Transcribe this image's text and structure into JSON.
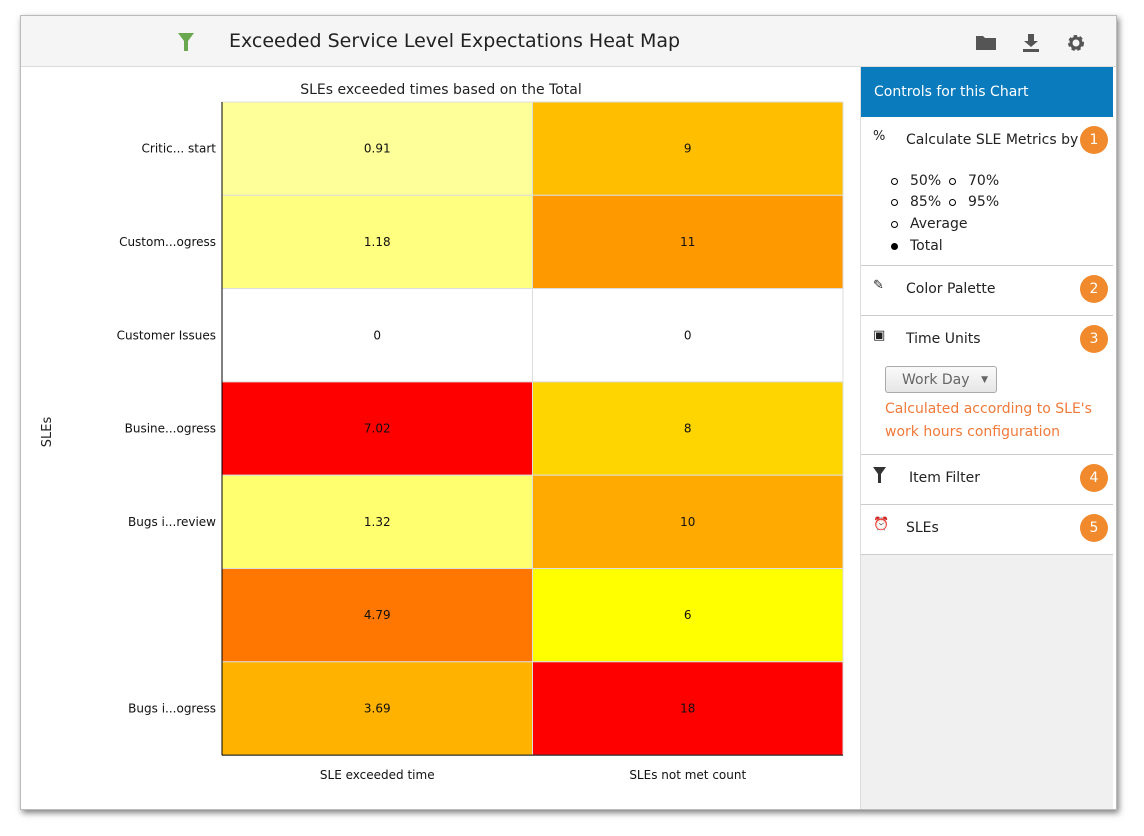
{
  "header": {
    "title": "Exceeded Service Level Expectations Heat Map",
    "icons": [
      "filter-icon",
      "folder-icon",
      "download-icon",
      "gear-icon"
    ],
    "filter_color": "#6aa84f"
  },
  "sidebar": {
    "title": "Controls for this Chart",
    "accent": "#0a7bbd",
    "sections": [
      {
        "label": "Calculate SLE Metrics by",
        "badge": "1",
        "icon": "percent-icon"
      },
      {
        "label": "Color Palette",
        "badge": "2",
        "icon": "palette-icon"
      },
      {
        "label": "Time Units",
        "badge": "3",
        "icon": "calendar-clock-icon"
      },
      {
        "label": "Item Filter",
        "badge": "4",
        "icon": "filter-icon"
      },
      {
        "label": "SLEs",
        "badge": "5",
        "icon": "alarm-icon"
      }
    ],
    "metric_options": [
      {
        "label": "50%",
        "selected": false
      },
      {
        "label": "70%",
        "selected": false
      },
      {
        "label": "85%",
        "selected": false
      },
      {
        "label": "95%",
        "selected": false
      },
      {
        "label": "Average",
        "selected": false
      },
      {
        "label": "Total",
        "selected": true
      }
    ],
    "time_unit": "Work Day",
    "time_note_1": "Calculated according to SLE's",
    "time_note_2": "work hours configuration"
  },
  "chart_data": {
    "type": "heatmap",
    "title": "SLEs exceeded times based on the Total",
    "ylabel": "SLEs",
    "columns": [
      "SLE exceeded time",
      "SLEs not met count"
    ],
    "rows": [
      "Critic... start",
      "Custom...ogress",
      "Customer Issues",
      "Busine...ogress",
      "Bugs i...review",
      "",
      "Bugs i...ogress"
    ],
    "values": [
      [
        "0.91",
        "9"
      ],
      [
        "1.18",
        "11"
      ],
      [
        "0",
        "0"
      ],
      [
        "7.02",
        "8"
      ],
      [
        "1.32",
        "10"
      ],
      [
        "4.79",
        "6"
      ],
      [
        "3.69",
        "18"
      ]
    ],
    "colors": [
      [
        "#ffff99",
        "#ffbf00"
      ],
      [
        "#ffff80",
        "#ff9900"
      ],
      [
        "#ffffff",
        "#ffffff"
      ],
      [
        "#ff0000",
        "#ffd500"
      ],
      [
        "#ffff70",
        "#ffaa00"
      ],
      [
        "#ff7700",
        "#ffff00"
      ],
      [
        "#ffb300",
        "#ff0000"
      ]
    ]
  }
}
